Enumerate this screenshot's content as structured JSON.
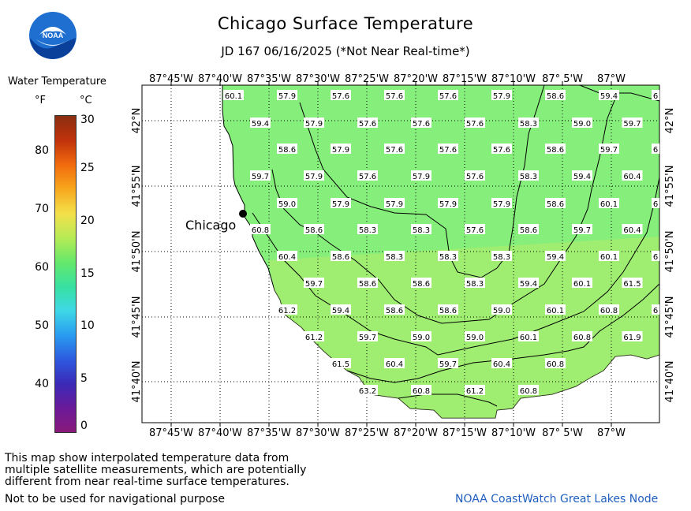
{
  "header": {
    "title": "Chicago Surface Temperature",
    "subtitle": "JD 167 06/16/2025 (*Not Near Real-time*)",
    "logo_text": "NOAA"
  },
  "legend": {
    "title": "Water Temperature",
    "unit_f": "°F",
    "unit_c": "°C",
    "f_ticks": [
      "80",
      "70",
      "60",
      "50",
      "40"
    ],
    "c_ticks": [
      "30",
      "25",
      "20",
      "15",
      "10",
      "5",
      "0"
    ],
    "colors_top_to_bottom": [
      "#8b2e10",
      "#c0320c",
      "#f26a0e",
      "#f7a71c",
      "#f4e04a",
      "#b7ea55",
      "#66e86a",
      "#38e1a0",
      "#3ed8e6",
      "#2a9df0",
      "#2d5be0",
      "#3a2ab8",
      "#6a1a9a",
      "#8a1a7a"
    ]
  },
  "map": {
    "top_lon_labels": [
      "87°45'W",
      "87°40'W",
      "87°35'W",
      "87°30'W",
      "87°25'W",
      "87°20'W",
      "87°15'W",
      "87°10'W",
      "87° 5'W",
      "87°W"
    ],
    "bottom_lon_labels": [
      "87°45'W",
      "87°40'W",
      "87°35'W",
      "87°30'W",
      "87°25'W",
      "87°20'W",
      "87°15'W",
      "87°10'W",
      "87° 5'W",
      "87°W"
    ],
    "lat_labels": [
      "42°N",
      "41°55'N",
      "41°50'N",
      "41°45'N",
      "41°40'N"
    ],
    "city": "Chicago",
    "water_color": "#86ee7a",
    "land_color": "#ffffff",
    "temperatures": [
      {
        "v": "60.1",
        "col": 0,
        "row": 0
      },
      {
        "v": "57.9",
        "col": 1,
        "row": 0
      },
      {
        "v": "57.6",
        "col": 2,
        "row": 0
      },
      {
        "v": "57.6",
        "col": 3,
        "row": 0
      },
      {
        "v": "57.6",
        "col": 4,
        "row": 0
      },
      {
        "v": "57.9",
        "col": 5,
        "row": 0
      },
      {
        "v": "58.6",
        "col": 6,
        "row": 0
      },
      {
        "v": "59.4",
        "col": 7,
        "row": 0
      },
      {
        "v": "6",
        "col": 8,
        "row": 0
      },
      {
        "v": "59.4",
        "col": 0.5,
        "row": 1
      },
      {
        "v": "57.9",
        "col": 1.5,
        "row": 1
      },
      {
        "v": "57.6",
        "col": 2.5,
        "row": 1
      },
      {
        "v": "57.6",
        "col": 3.5,
        "row": 1
      },
      {
        "v": "57.6",
        "col": 4.5,
        "row": 1
      },
      {
        "v": "58.3",
        "col": 5.5,
        "row": 1
      },
      {
        "v": "59.0",
        "col": 6.5,
        "row": 1
      },
      {
        "v": "59.7",
        "col": 7.5,
        "row": 1
      },
      {
        "v": "58.6",
        "col": 1,
        "row": 2
      },
      {
        "v": "57.9",
        "col": 2,
        "row": 2
      },
      {
        "v": "57.6",
        "col": 3,
        "row": 2
      },
      {
        "v": "57.6",
        "col": 4,
        "row": 2
      },
      {
        "v": "57.6",
        "col": 5,
        "row": 2
      },
      {
        "v": "58.6",
        "col": 6,
        "row": 2
      },
      {
        "v": "59.7",
        "col": 7,
        "row": 2
      },
      {
        "v": "6",
        "col": 8,
        "row": 2
      },
      {
        "v": "59.7",
        "col": 0.5,
        "row": 3
      },
      {
        "v": "57.9",
        "col": 1.5,
        "row": 3
      },
      {
        "v": "57.6",
        "col": 2.5,
        "row": 3
      },
      {
        "v": "57.9",
        "col": 3.5,
        "row": 3
      },
      {
        "v": "57.6",
        "col": 4.5,
        "row": 3
      },
      {
        "v": "58.3",
        "col": 5.5,
        "row": 3
      },
      {
        "v": "59.4",
        "col": 6.5,
        "row": 3
      },
      {
        "v": "60.4",
        "col": 7.5,
        "row": 3
      },
      {
        "v": "59.0",
        "col": 1,
        "row": 4
      },
      {
        "v": "57.9",
        "col": 2,
        "row": 4
      },
      {
        "v": "57.9",
        "col": 3,
        "row": 4
      },
      {
        "v": "57.9",
        "col": 4,
        "row": 4
      },
      {
        "v": "57.9",
        "col": 5,
        "row": 4
      },
      {
        "v": "58.6",
        "col": 6,
        "row": 4
      },
      {
        "v": "60.1",
        "col": 7,
        "row": 4
      },
      {
        "v": "6",
        "col": 8,
        "row": 4
      },
      {
        "v": "60.8",
        "col": 0.5,
        "row": 5
      },
      {
        "v": "58.6",
        "col": 1.5,
        "row": 5
      },
      {
        "v": "58.3",
        "col": 2.5,
        "row": 5
      },
      {
        "v": "58.3",
        "col": 3.5,
        "row": 5
      },
      {
        "v": "57.6",
        "col": 4.5,
        "row": 5
      },
      {
        "v": "58.6",
        "col": 5.5,
        "row": 5
      },
      {
        "v": "59.7",
        "col": 6.5,
        "row": 5
      },
      {
        "v": "60.4",
        "col": 7.5,
        "row": 5
      },
      {
        "v": "60.4",
        "col": 1,
        "row": 6
      },
      {
        "v": "58.6",
        "col": 2,
        "row": 6
      },
      {
        "v": "58.3",
        "col": 3,
        "row": 6
      },
      {
        "v": "58.3",
        "col": 4,
        "row": 6
      },
      {
        "v": "58.3",
        "col": 5,
        "row": 6
      },
      {
        "v": "59.4",
        "col": 6,
        "row": 6
      },
      {
        "v": "60.1",
        "col": 7,
        "row": 6
      },
      {
        "v": "6",
        "col": 8,
        "row": 6
      },
      {
        "v": "59.7",
        "col": 1.5,
        "row": 7
      },
      {
        "v": "58.6",
        "col": 2.5,
        "row": 7
      },
      {
        "v": "58.6",
        "col": 3.5,
        "row": 7
      },
      {
        "v": "58.3",
        "col": 4.5,
        "row": 7
      },
      {
        "v": "59.4",
        "col": 5.5,
        "row": 7
      },
      {
        "v": "60.1",
        "col": 6.5,
        "row": 7
      },
      {
        "v": "61.5",
        "col": 7.5,
        "row": 7
      },
      {
        "v": "61.2",
        "col": 1,
        "row": 8
      },
      {
        "v": "59.4",
        "col": 2,
        "row": 8
      },
      {
        "v": "58.6",
        "col": 3,
        "row": 8
      },
      {
        "v": "58.6",
        "col": 4,
        "row": 8
      },
      {
        "v": "59.0",
        "col": 5,
        "row": 8
      },
      {
        "v": "60.1",
        "col": 6,
        "row": 8
      },
      {
        "v": "60.8",
        "col": 7,
        "row": 8
      },
      {
        "v": "6",
        "col": 8,
        "row": 8
      },
      {
        "v": "61.2",
        "col": 1.5,
        "row": 9
      },
      {
        "v": "59.7",
        "col": 2.5,
        "row": 9
      },
      {
        "v": "59.0",
        "col": 3.5,
        "row": 9
      },
      {
        "v": "59.0",
        "col": 4.5,
        "row": 9
      },
      {
        "v": "60.1",
        "col": 5.5,
        "row": 9
      },
      {
        "v": "60.8",
        "col": 6.5,
        "row": 9
      },
      {
        "v": "61.9",
        "col": 7.5,
        "row": 9
      },
      {
        "v": "61.5",
        "col": 2,
        "row": 10
      },
      {
        "v": "60.4",
        "col": 3,
        "row": 10
      },
      {
        "v": "59.7",
        "col": 4,
        "row": 10
      },
      {
        "v": "60.4",
        "col": 5,
        "row": 10
      },
      {
        "v": "60.8",
        "col": 6,
        "row": 10
      },
      {
        "v": "63.2",
        "col": 2.5,
        "row": 11
      },
      {
        "v": "60.8",
        "col": 3.5,
        "row": 11
      },
      {
        "v": "61.2",
        "col": 4.5,
        "row": 11
      },
      {
        "v": "60.8",
        "col": 5.5,
        "row": 11
      }
    ]
  },
  "footer": {
    "disclaimer_lines": [
      "This map show interpolated temperature data from",
      "multiple satellite measurements, which are potentially",
      "different from near real-time surface temperatures."
    ],
    "nav_warning": "Not to be used for navigational purpose",
    "credit": "NOAA CoastWatch Great Lakes Node"
  }
}
